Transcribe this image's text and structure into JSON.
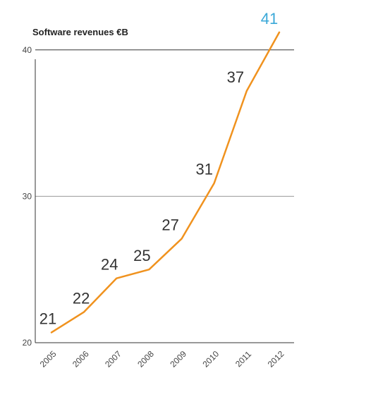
{
  "colors": {
    "line": "#F0921E",
    "highlight_label": "#3AA8D8",
    "label": "#333333",
    "axis_text": "#444444",
    "grid_top": "#333333",
    "grid_mid": "#9A9A9A",
    "axis": "#333333"
  },
  "chart_data": {
    "type": "line",
    "title": "Software revenues €B",
    "xlabel": "",
    "ylabel": "",
    "categories": [
      "2005",
      "2006",
      "2007",
      "2008",
      "2009",
      "2010",
      "2011",
      "2012"
    ],
    "values": [
      20.7,
      22.1,
      24.4,
      25.0,
      27.1,
      30.9,
      37.2,
      41.2
    ],
    "data_labels": [
      "21",
      "22",
      "24",
      "25",
      "27",
      "31",
      "37",
      "41"
    ],
    "highlighted_label_index": 7,
    "ylim": [
      20,
      41
    ],
    "yticks": [
      20,
      30,
      40
    ],
    "grid": "horizontal lines at 30 and 40"
  }
}
